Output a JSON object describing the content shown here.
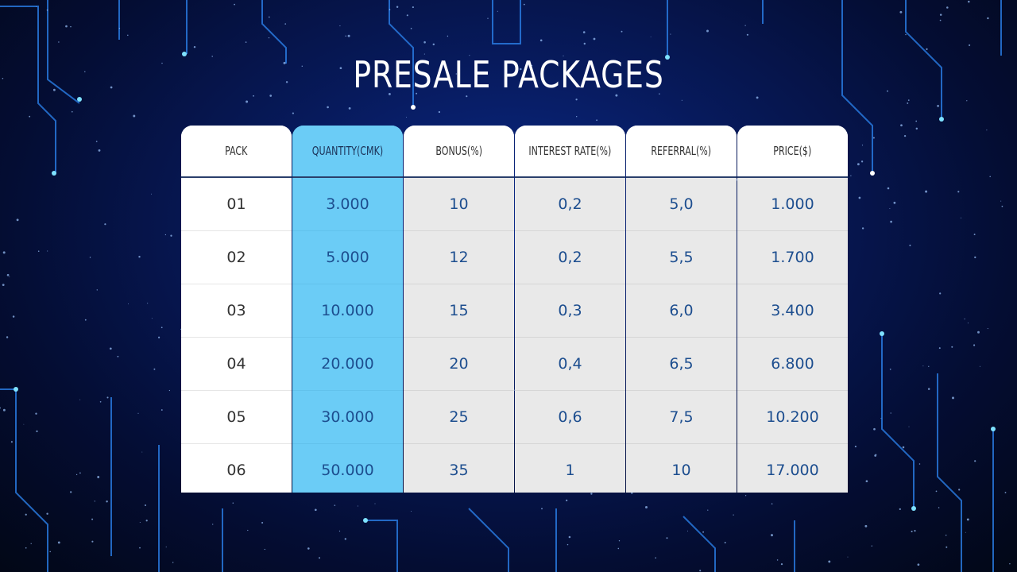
{
  "title": "PRESALE PACKAGES",
  "columns": [
    {
      "header": "PACK",
      "values": [
        "01",
        "02",
        "03",
        "04",
        "05",
        "06"
      ]
    },
    {
      "header": "QUANTITY(CMK)",
      "values": [
        "3.000",
        "5.000",
        "10.000",
        "20.000",
        "30.000",
        "50.000"
      ]
    },
    {
      "header": "BONUS(%)",
      "values": [
        "10",
        "12",
        "15",
        "20",
        "25",
        "35"
      ]
    },
    {
      "header": "INTEREST RATE(%)",
      "values": [
        "0,2",
        "0,2",
        "0,3",
        "0,4",
        "0,6",
        "1"
      ]
    },
    {
      "header": "REFERRAL(%)",
      "values": [
        "5,0",
        "5,5",
        "6,0",
        "6,5",
        "7,5",
        "10"
      ]
    },
    {
      "header": "PRICE($)",
      "values": [
        "1.000",
        "1.700",
        "3.400",
        "6.800",
        "10.200",
        "17.000"
      ]
    }
  ],
  "colors": {
    "background": "#071a5c",
    "highlight_column": "#6bccf6",
    "value_text": "#1d4e8f"
  }
}
